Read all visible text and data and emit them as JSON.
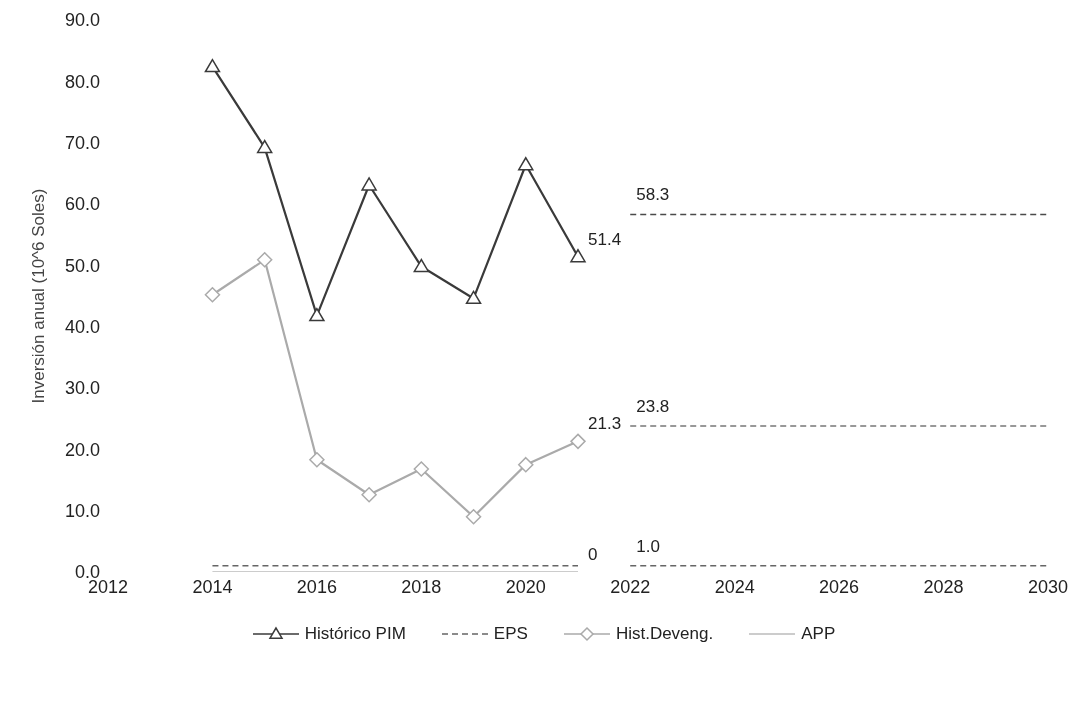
{
  "chart_data": {
    "type": "line",
    "ylabel": "Inversión anual (10^6 Soles)",
    "xlim": [
      2012,
      2030
    ],
    "xticks": [
      2012,
      2014,
      2016,
      2018,
      2020,
      2022,
      2024,
      2026,
      2028,
      2030
    ],
    "ylim": [
      0,
      90
    ],
    "yticks": [
      {
        "value": 0,
        "label": "0.0"
      },
      {
        "value": 10,
        "label": "10.0"
      },
      {
        "value": 20,
        "label": "20.0"
      },
      {
        "value": 30,
        "label": "30.0"
      },
      {
        "value": 40,
        "label": "40.0"
      },
      {
        "value": 50,
        "label": "50.0"
      },
      {
        "value": 60,
        "label": "60.0"
      },
      {
        "value": 70,
        "label": "70.0"
      },
      {
        "value": 80,
        "label": "80.0"
      },
      {
        "value": 90,
        "label": "90.0"
      }
    ],
    "legend": "bottom",
    "series": [
      {
        "name": "Histórico PIM",
        "color": "#3a3a3a",
        "marker": "triangle",
        "line_style": "solid",
        "x": [
          2014,
          2015,
          2016,
          2017,
          2018,
          2019,
          2020,
          2021
        ],
        "values": [
          82.4,
          69.2,
          41.8,
          63.1,
          49.8,
          44.6,
          66.4,
          51.4
        ],
        "value_labels": [
          null,
          null,
          null,
          null,
          null,
          null,
          null,
          "51.4"
        ]
      },
      {
        "name": "EPS",
        "color": "#666666",
        "marker": "none",
        "line_style": "dashed",
        "x": [
          2014,
          2021
        ],
        "values": [
          1.0,
          1.0
        ]
      },
      {
        "name": "Hist.Deveng.",
        "color": "#aaaaaa",
        "marker": "diamond",
        "line_style": "solid",
        "x": [
          2014,
          2015,
          2016,
          2017,
          2018,
          2019,
          2020,
          2021
        ],
        "values": [
          45.2,
          50.9,
          18.3,
          12.6,
          16.8,
          9.0,
          17.5,
          21.3
        ],
        "value_labels": [
          null,
          null,
          null,
          null,
          null,
          null,
          null,
          "21.3"
        ]
      },
      {
        "name": "APP",
        "color": "#bbbbbb",
        "marker": "none",
        "line_style": "solid",
        "x": [
          2014,
          2021
        ],
        "values": [
          0,
          0
        ],
        "value_labels": [
          null,
          "0"
        ]
      },
      {
        "color": "#4a4a4a",
        "marker": "none",
        "line_style": "dashed",
        "x": [
          2022,
          2030
        ],
        "values": [
          58.3,
          58.3
        ],
        "value_labels": [
          "58.3",
          null
        ]
      },
      {
        "color": "#777777",
        "marker": "none",
        "line_style": "dashed",
        "x": [
          2022,
          2030
        ],
        "values": [
          23.8,
          23.8
        ],
        "value_labels": [
          "23.8",
          null
        ]
      },
      {
        "color": "#666666",
        "marker": "none",
        "line_style": "dashed",
        "x": [
          2022,
          2030
        ],
        "values": [
          1.0,
          1.0
        ],
        "value_labels": [
          "1.0",
          null
        ]
      }
    ]
  }
}
